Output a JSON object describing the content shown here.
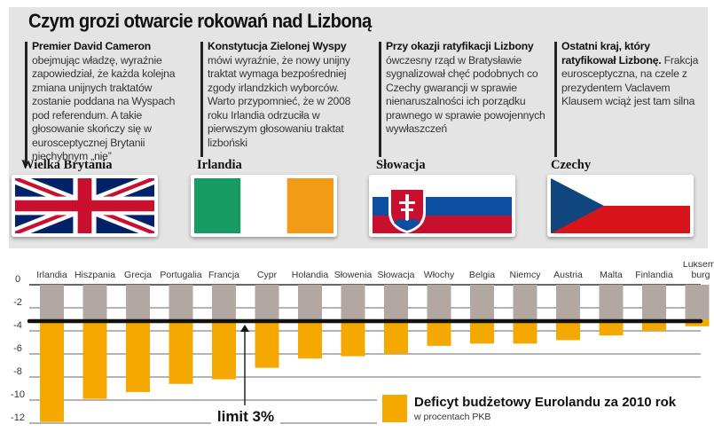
{
  "header": {
    "title": "Czym grozi otwarcie rokowań nad Lizboną"
  },
  "columns": [
    {
      "lead": "Premier David Cameron",
      "body": "obejmując władzę, wyraźnie zapowiedział, że każda kolejna zmiana unijnych traktatów zostanie poddana na Wyspach pod referendum. A takie głosowanie skończy się w eurosceptycznej Brytanii niechybnym „nie”",
      "country": "Wielka Brytania",
      "flag": "uk-flag"
    },
    {
      "lead": "Konstytucja Zielonej Wyspy",
      "body": "mówi wyraźnie, że nowy unijny traktat wymaga bezpośredniej zgody irlandzkich wyborców. Warto przypomnieć, że w 2008 roku Irlandia odrzuciła w pierwszym głosowaniu traktat lizboński",
      "country": "Irlandia",
      "flag": "ireland-flag"
    },
    {
      "lead": "Przy okazji ratyfikacji Lizbony",
      "body": "ówczesny rząd w Bratysławie sygnalizował chęć podobnych co Czechy gwarancji w sprawie nienaruszalności ich porządku prawnego w sprawie powojennych wywłaszczeń",
      "country": "Słowacja",
      "flag": "slovakia-flag"
    },
    {
      "lead": "Ostatni kraj, który ratyfikował Lizbonę.",
      "body": "Frakcja eurosceptyczna, na czele z prezydentem Vaclavem Klausem wciąż jest tam silna",
      "country": "Czechy",
      "flag": "czech-flag"
    }
  ],
  "colors": {
    "deficit_bar": "#f5a800",
    "limit_bar": "#b3a8a1",
    "limit_line": "#111111",
    "panel_bg": "#e4e4e4",
    "gridline": "#888888"
  },
  "chart_data": {
    "type": "bar",
    "title": "Deficyt budżetowy Eurolandu za 2010 rok",
    "subtitle": "w procentach PKB",
    "xlabel": "",
    "ylabel": "",
    "ylim": [
      -12,
      0
    ],
    "yticks": [
      0,
      -2,
      -4,
      -6,
      -8,
      -10,
      -12
    ],
    "ytick_labels": [
      "0",
      "-2",
      "-4",
      "-6",
      "-8",
      "-10",
      "-12"
    ],
    "grid": true,
    "legend": {
      "position": "bottom-right",
      "entries": [
        "Deficyt budżetowy Eurolandu za 2010 rok"
      ]
    },
    "categories": [
      "Irlandia",
      "Hiszpania",
      "Grecja",
      "Portugalia",
      "Francja",
      "Cypr",
      "Holandia",
      "Słowenia",
      "Słowacja",
      "Włochy",
      "Belgia",
      "Niemcy",
      "Austria",
      "Malta",
      "Finlandia",
      "Luksemburg"
    ],
    "category_labels": [
      "Irlandia",
      "Hiszpania",
      "Grecja",
      "Portugalia",
      "Francja",
      "Cypr",
      "Holandia",
      "Słowenia",
      "Słowacja",
      "Włochy",
      "Belgia",
      "Niemcy",
      "Austria",
      "Malta",
      "Finlandia",
      "Luksem-\nburg"
    ],
    "series": [
      {
        "name": "Deficyt budżetowy 2010 (% PKB)",
        "values": [
          -11.9,
          -9.9,
          -9.3,
          -8.6,
          -8.2,
          -7.2,
          -6.4,
          -6.2,
          -6.0,
          -5.3,
          -5.1,
          -5.1,
          -4.8,
          -4.4,
          -4.0,
          -3.6
        ]
      }
    ],
    "reference_line": {
      "value": -3,
      "label": "limit 3%"
    }
  }
}
